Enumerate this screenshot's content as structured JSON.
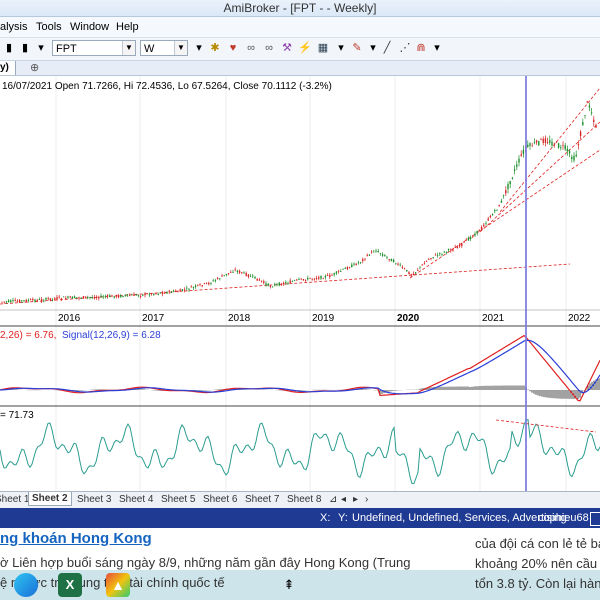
{
  "window": {
    "title": "AmiBroker - [FPT -  - Weekly]"
  },
  "menu": [
    "alysis",
    "Tools",
    "Window",
    "Help"
  ],
  "toolbar": {
    "symbol": "FPT",
    "interval": "W"
  },
  "chart_tab": {
    "label": "y)"
  },
  "info_line": "16/07/2021 Open 71.7266, Hi 72.4536, Lo 67.5264, Close 70.1112 (-3.2%)",
  "macd_label": {
    "macd": "2,26) = 6.76,",
    "signal": "Signal(12,26,9) = 6.28"
  },
  "rsi_label": "= 71.73",
  "x_axis_labels": [
    "2016",
    "2017",
    "2018",
    "2019",
    "2020",
    "2021",
    "2022"
  ],
  "sheets": [
    "Sheet 1",
    "Sheet 2",
    "Sheet 3",
    "Sheet 4",
    "Sheet 5",
    "Sheet 6",
    "Sheet 7",
    "Sheet 8"
  ],
  "active_sheet": "Sheet 2",
  "statusbar": {
    "x": "X:",
    "y": "Y:",
    "info": "Undefined, Undefined, Services, Advertising",
    "user": "cophieu68"
  },
  "article": {
    "headline": "ng khoán Hong Kong",
    "line1": "ờ Liên hợp buổi sáng ngày 8/9, những năm gần đây Hong Kong (Trung",
    "line2": "ệ  nổ lực   trở    trung tâm tài chính quốc tế",
    "right1": "của đội cá con lẻ tẻ bả",
    "right2": "khoảng 20% nên cầu n",
    "right3": "tổn 3.8 tỷ. Còn lại hàng"
  },
  "colors": {
    "status": "#1f3a93",
    "candle_up": "#1a8f2a",
    "candle_down": "#d62020",
    "macd": "#e02020",
    "signal": "#2a3fd8",
    "rsi": "#2a9d8f",
    "cursor": "#7a7ae0"
  }
}
